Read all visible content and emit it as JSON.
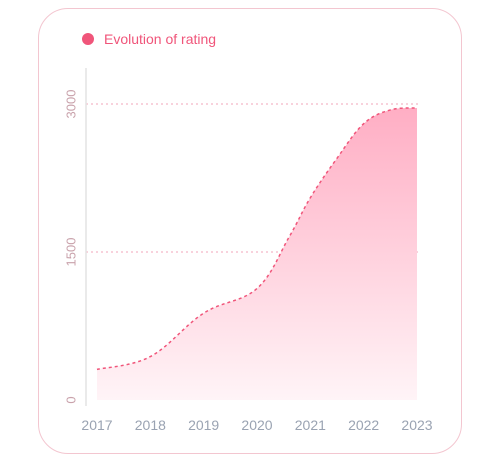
{
  "legend": {
    "label": "Evolution of rating",
    "color": "#f0557a"
  },
  "chart_data": {
    "type": "area",
    "title": "",
    "xlabel": "",
    "ylabel": "",
    "x": [
      "2017",
      "2018",
      "2019",
      "2020",
      "2021",
      "2022",
      "2023"
    ],
    "series": [
      {
        "name": "Evolution of rating",
        "points": [
          [
            2017.0,
            310
          ],
          [
            2018.0,
            440
          ],
          [
            2019.0,
            880
          ],
          [
            2020.0,
            1130
          ],
          [
            2020.6,
            1650
          ],
          [
            2021.0,
            2050
          ],
          [
            2021.5,
            2450
          ],
          [
            2022.0,
            2800
          ],
          [
            2022.5,
            2940
          ],
          [
            2023.0,
            2960
          ]
        ]
      }
    ],
    "yticks": [
      0,
      1500,
      3000
    ],
    "ylim": [
      0,
      3000
    ],
    "xlim": [
      2017,
      2023
    ],
    "grid": true,
    "colors": {
      "line": "#f0557a",
      "fill_top": "#ffaec4",
      "fill_bottom": "#fff4f7",
      "grid": "#f3b8c6",
      "axis": "#e3e3e3"
    }
  }
}
